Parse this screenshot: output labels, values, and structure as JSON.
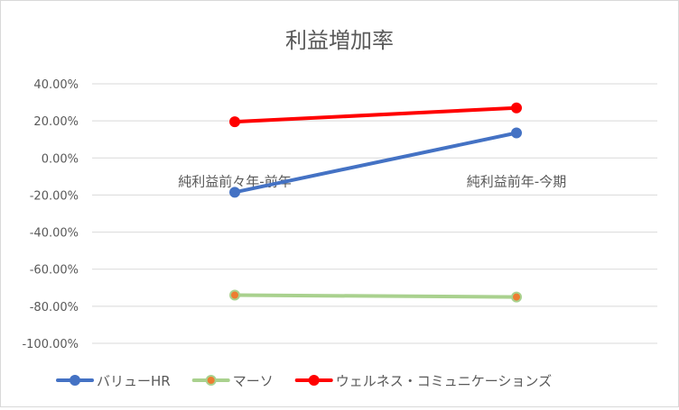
{
  "chart_data": {
    "type": "line",
    "title": "利益増加率",
    "categories": [
      "純利益前々年-前年",
      "純利益前年-今期"
    ],
    "y_ticks": [
      "40.00%",
      "20.00%",
      "0.00%",
      "-20.00%",
      "-40.00%",
      "-60.00%",
      "-80.00%",
      "-100.00%"
    ],
    "ylim": [
      -100,
      40
    ],
    "ylabel": "",
    "xlabel": "",
    "grid": true,
    "legend_position": "bottom",
    "series": [
      {
        "name": "バリューHR",
        "values": [
          -18.5,
          13.5
        ],
        "color": "#4472c4",
        "marker": "#4472c4"
      },
      {
        "name": "マーソ",
        "values": [
          -74.0,
          -75.0
        ],
        "color": "#a9d18e",
        "marker": "#ed7d31"
      },
      {
        "name": "ウェルネス・コミュニケーションズ",
        "values": [
          19.5,
          27.0
        ],
        "color": "#ff0000",
        "marker": "#ff0000"
      }
    ]
  }
}
